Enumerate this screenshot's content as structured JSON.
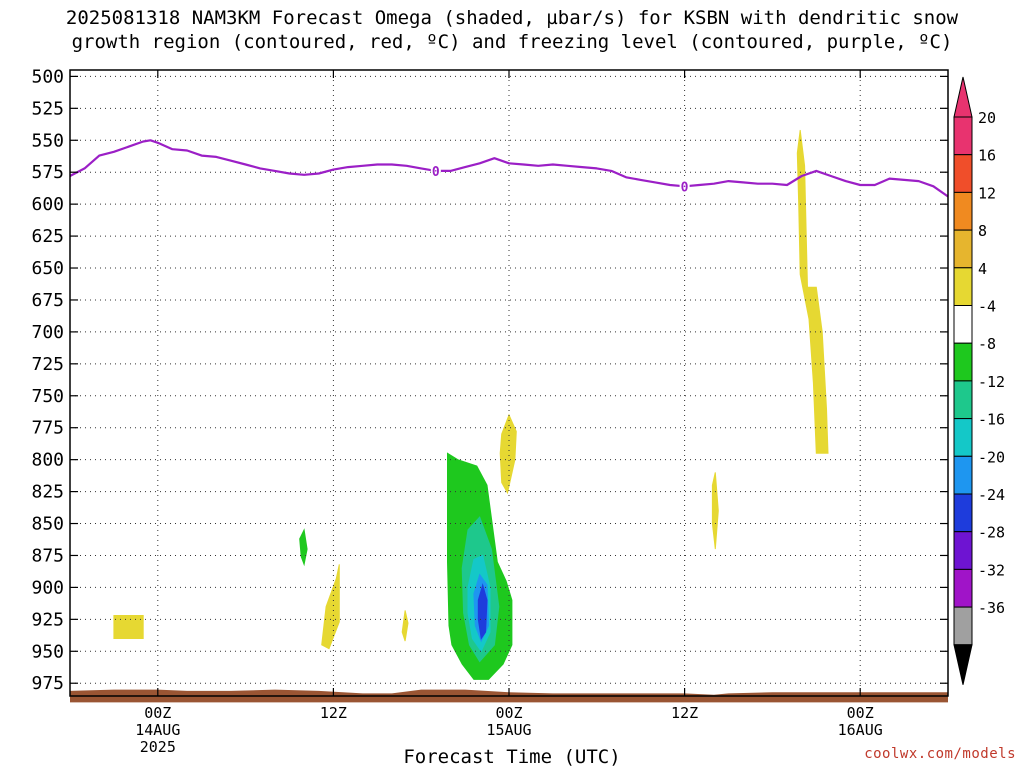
{
  "title": {
    "line1": "2025081318 NAM3KM Forecast Omega (shaded, µbar/s) for KSBN with dendritic snow",
    "line2": "growth region (contoured, red, ºC) and freezing level (contoured, purple, ºC)"
  },
  "credit": "coolwx.com/models",
  "chart_data": {
    "type": "heatmap",
    "xlabel": "Forecast Time (UTC)",
    "ylabel": "",
    "x_unit": "forecast hour from 2025081318",
    "xlim": [
      0,
      60
    ],
    "ylim": [
      985,
      495
    ],
    "y_ticks": [
      500,
      525,
      550,
      575,
      600,
      625,
      650,
      675,
      700,
      725,
      750,
      775,
      800,
      825,
      850,
      875,
      900,
      925,
      950,
      975
    ],
    "x_ticks": [
      {
        "hour": 6,
        "lines": [
          "00Z",
          "14AUG",
          "2025"
        ]
      },
      {
        "hour": 18,
        "lines": [
          "12Z"
        ]
      },
      {
        "hour": 30,
        "lines": [
          "00Z",
          "15AUG"
        ]
      },
      {
        "hour": 42,
        "lines": [
          "12Z"
        ]
      },
      {
        "hour": 54,
        "lines": [
          "00Z",
          "16AUG"
        ]
      }
    ],
    "colorbar": {
      "labels": [
        "20",
        "16",
        "12",
        "8",
        "4",
        "-4",
        "-8",
        "-12",
        "-16",
        "-20",
        "-24",
        "-28",
        "-32",
        "-36"
      ],
      "colors": [
        "#e8336f",
        "#f04e2a",
        "#f08a20",
        "#e6b52e",
        "#e6d832",
        "#ffffff",
        "#1ec81e",
        "#1ec88c",
        "#14c8c8",
        "#1e96f0",
        "#1e3cdc",
        "#6e14d2",
        "#a014c8",
        "#a0a0a0"
      ],
      "top_arrow_color": "#e8336f",
      "bottom_arrow_color": "#000000"
    },
    "freezing_level": {
      "color": "#9b1fc6",
      "label": "0",
      "label_hours": [
        25,
        42
      ],
      "points": [
        [
          0,
          578
        ],
        [
          1,
          572
        ],
        [
          2,
          562
        ],
        [
          3,
          559
        ],
        [
          4,
          555
        ],
        [
          5,
          551
        ],
        [
          5.5,
          550
        ],
        [
          6,
          552
        ],
        [
          7,
          557
        ],
        [
          8,
          558
        ],
        [
          9,
          562
        ],
        [
          10,
          563
        ],
        [
          11,
          566
        ],
        [
          12,
          569
        ],
        [
          13,
          572
        ],
        [
          14,
          574
        ],
        [
          15,
          576
        ],
        [
          16,
          577
        ],
        [
          17,
          576
        ],
        [
          18,
          573
        ],
        [
          19,
          571
        ],
        [
          20,
          570
        ],
        [
          21,
          569
        ],
        [
          22,
          569
        ],
        [
          23,
          570
        ],
        [
          24,
          572
        ],
        [
          25,
          574
        ],
        [
          26,
          574
        ],
        [
          27,
          571
        ],
        [
          28,
          568
        ],
        [
          29,
          564
        ],
        [
          30,
          568
        ],
        [
          31,
          569
        ],
        [
          32,
          570
        ],
        [
          33,
          569
        ],
        [
          34,
          570
        ],
        [
          35,
          571
        ],
        [
          36,
          572
        ],
        [
          37,
          574
        ],
        [
          38,
          579
        ],
        [
          39,
          581
        ],
        [
          40,
          583
        ],
        [
          41,
          585
        ],
        [
          42,
          586
        ],
        [
          43,
          585
        ],
        [
          44,
          584
        ],
        [
          45,
          582
        ],
        [
          46,
          583
        ],
        [
          47,
          584
        ],
        [
          48,
          584
        ],
        [
          49,
          585
        ],
        [
          50,
          578
        ],
        [
          51,
          574
        ],
        [
          52,
          578
        ],
        [
          53,
          582
        ],
        [
          54,
          585
        ],
        [
          55,
          585
        ],
        [
          56,
          580
        ],
        [
          57,
          581
        ],
        [
          58,
          582
        ],
        [
          59,
          586
        ],
        [
          60,
          594
        ]
      ]
    },
    "omega_regions": [
      {
        "level": "4 to 8",
        "color": "#e6d832",
        "polygon": [
          [
            3,
            922
          ],
          [
            5,
            922
          ],
          [
            5,
            940
          ],
          [
            3,
            940
          ]
        ]
      },
      {
        "level": "4 to 8",
        "color": "#e6d832",
        "polygon": [
          [
            17.2,
            945
          ],
          [
            17.5,
            915
          ],
          [
            18.2,
            893
          ],
          [
            18.4,
            882
          ],
          [
            18.4,
            927
          ],
          [
            17.7,
            948
          ]
        ]
      },
      {
        "level": "4 to 8",
        "color": "#e6d832",
        "polygon": [
          [
            22.7,
            935
          ],
          [
            22.9,
            918
          ],
          [
            23.1,
            928
          ],
          [
            22.9,
            942
          ]
        ]
      },
      {
        "level": "4 to 8",
        "color": "#e6d832",
        "polygon": [
          [
            29.5,
            780
          ],
          [
            30,
            765
          ],
          [
            30.5,
            778
          ],
          [
            30.4,
            800
          ],
          [
            29.9,
            826
          ],
          [
            29.5,
            818
          ],
          [
            29.4,
            795
          ]
        ]
      },
      {
        "level": "4 to 8",
        "color": "#e6d832",
        "polygon": [
          [
            43.9,
            820
          ],
          [
            44.1,
            810
          ],
          [
            44.3,
            840
          ],
          [
            44.1,
            870
          ],
          [
            43.9,
            850
          ]
        ]
      },
      {
        "level": "4 to 8",
        "color": "#e6d832",
        "polygon": [
          [
            49.9,
            542
          ],
          [
            50.2,
            570
          ],
          [
            50.3,
            620
          ],
          [
            50.4,
            665
          ],
          [
            51,
            665
          ],
          [
            51.4,
            700
          ],
          [
            51.7,
            760
          ],
          [
            51.8,
            795
          ],
          [
            51,
            795
          ],
          [
            50.8,
            740
          ],
          [
            50.5,
            690
          ],
          [
            49.9,
            655
          ],
          [
            49.8,
            600
          ],
          [
            49.7,
            560
          ]
        ]
      },
      {
        "level": "-4 to -8",
        "color": "#1ec81e",
        "polygon": [
          [
            15.7,
            862
          ],
          [
            16,
            855
          ],
          [
            16.2,
            870
          ],
          [
            16,
            882
          ],
          [
            15.8,
            876
          ]
        ]
      },
      {
        "level": "-4 to -8",
        "color": "#1ec81e",
        "polygon": [
          [
            25.8,
            795
          ],
          [
            26.5,
            800
          ],
          [
            27.8,
            805
          ],
          [
            28.5,
            820
          ],
          [
            29.2,
            880
          ],
          [
            29.8,
            895
          ],
          [
            30.2,
            910
          ],
          [
            30.2,
            945
          ],
          [
            29.6,
            960
          ],
          [
            28.6,
            972
          ],
          [
            27.6,
            972
          ],
          [
            26.8,
            960
          ],
          [
            26.1,
            945
          ],
          [
            25.9,
            930
          ],
          [
            25.8,
            880
          ]
        ]
      },
      {
        "level": "-8 to -12",
        "color": "#1ec88c",
        "polygon": [
          [
            26.8,
            885
          ],
          [
            27.2,
            855
          ],
          [
            28,
            845
          ],
          [
            28.8,
            870
          ],
          [
            29.3,
            915
          ],
          [
            29,
            945
          ],
          [
            28,
            958
          ],
          [
            27.3,
            945
          ],
          [
            26.9,
            920
          ]
        ]
      },
      {
        "level": "-12 to -16",
        "color": "#14c8c8",
        "polygon": [
          [
            27.2,
            900
          ],
          [
            27.6,
            878
          ],
          [
            28.2,
            875
          ],
          [
            28.7,
            900
          ],
          [
            28.7,
            935
          ],
          [
            28.1,
            950
          ],
          [
            27.5,
            940
          ],
          [
            27.2,
            920
          ]
        ]
      },
      {
        "level": "-16 to -20",
        "color": "#1e96f0",
        "polygon": [
          [
            27.6,
            905
          ],
          [
            28,
            890
          ],
          [
            28.5,
            898
          ],
          [
            28.6,
            930
          ],
          [
            28.1,
            942
          ],
          [
            27.7,
            930
          ]
        ]
      },
      {
        "level": "-20 to -24",
        "color": "#1e3cdc",
        "polygon": [
          [
            27.9,
            910
          ],
          [
            28.2,
            898
          ],
          [
            28.5,
            910
          ],
          [
            28.4,
            935
          ],
          [
            28.1,
            940
          ],
          [
            27.9,
            925
          ]
        ]
      }
    ],
    "terrain": {
      "color": "#9a5533",
      "bottom": 990,
      "points": [
        [
          0,
          981
        ],
        [
          3,
          980
        ],
        [
          6,
          980
        ],
        [
          8,
          981
        ],
        [
          11,
          981
        ],
        [
          14,
          980
        ],
        [
          17,
          981
        ],
        [
          20,
          983
        ],
        [
          22,
          983
        ],
        [
          24,
          980
        ],
        [
          27,
          980
        ],
        [
          30,
          982
        ],
        [
          33,
          983
        ],
        [
          36,
          983
        ],
        [
          40,
          983
        ],
        [
          42,
          983
        ],
        [
          44,
          984
        ],
        [
          45,
          983
        ],
        [
          48,
          982
        ],
        [
          52,
          982
        ],
        [
          56,
          982
        ],
        [
          60,
          982
        ]
      ]
    },
    "grid": "dotted"
  }
}
